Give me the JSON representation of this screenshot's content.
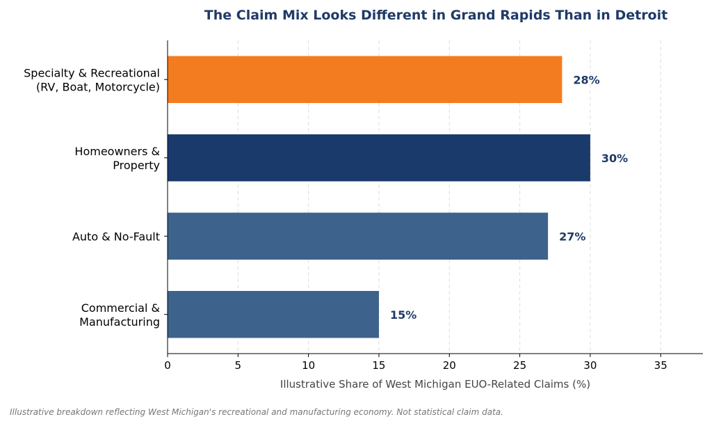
{
  "chart_data": {
    "type": "bar",
    "orientation": "horizontal",
    "title": "The Claim Mix Looks Different in Grand Rapids Than in Detroit",
    "xlabel": "Illustrative Share of West Michigan EUO-Related Claims (%)",
    "ylabel": "",
    "xlim": [
      0,
      38
    ],
    "xticks": [
      0,
      5,
      10,
      15,
      20,
      25,
      30,
      35
    ],
    "grid": "vertical-dashed",
    "categories": [
      [
        "Specialty & Recreational",
        "(RV, Boat, Motorcycle)"
      ],
      [
        "Homeowners &",
        "Property"
      ],
      [
        "Auto & No-Fault"
      ],
      [
        "Commercial &",
        "Manufacturing"
      ]
    ],
    "values": [
      28,
      30,
      27,
      15
    ],
    "value_labels": [
      "28%",
      "30%",
      "27%",
      "15%"
    ],
    "colors": [
      "#f47c20",
      "#1a3a6b",
      "#3d638c",
      "#3d638c"
    ]
  },
  "colors": {
    "title": "#1f3a68",
    "value_label": "#1f3a68",
    "grid": "#dddddd",
    "axis": "#000000"
  },
  "footnote": "Illustrative breakdown reflecting West Michigan's recreational and manufacturing economy. Not statistical claim data."
}
